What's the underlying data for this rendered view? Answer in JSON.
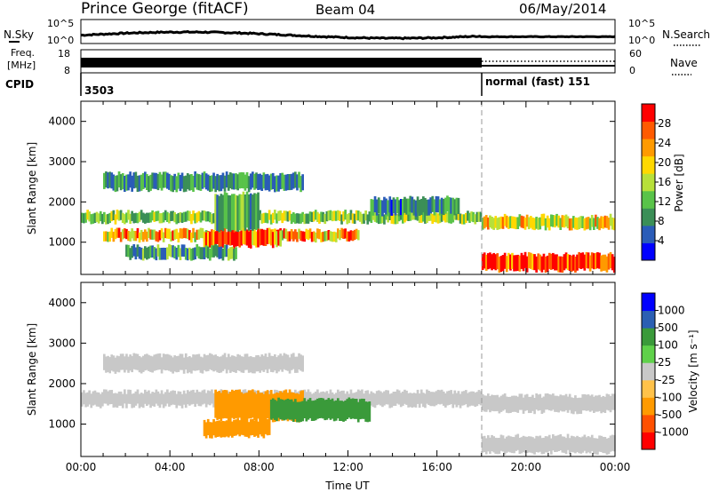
{
  "header": {
    "station": "Prince George (fitACF)",
    "beam": "Beam 04",
    "date": "06/May/2014"
  },
  "nsky_panel": {
    "left_label": "N.Sky",
    "left_ticks": [
      "10^5",
      "10^0"
    ],
    "right_ticks": [
      "10^5",
      "10^0"
    ],
    "right_label": "N.Search"
  },
  "freq_panel": {
    "left_label_line1": "Freq.",
    "left_label_line2": "[MHz]",
    "left_ticks": [
      "18",
      "8"
    ],
    "right_ticks": [
      "60",
      "0"
    ],
    "right_label": "Nave"
  },
  "cpid_panel": {
    "label": "CPID",
    "segments": [
      {
        "text": "3503",
        "start_hour": 0
      },
      {
        "text": "normal (fast) 151",
        "start_hour": 18
      }
    ]
  },
  "colors": {
    "power_scale": [
      "#0000ff",
      "#2a5cb8",
      "#3b8f57",
      "#59c349",
      "#b7e03a",
      "#ffd800",
      "#ff9a00",
      "#ff5a00",
      "#ff0000"
    ],
    "velocity_scale": [
      "#ff0000",
      "#ff5000",
      "#ff9a00",
      "#ffc24a",
      "#c8c8c8",
      "#5fd14a",
      "#3a9a3a",
      "#2b5fb3",
      "#0000ff"
    ]
  },
  "chart_data": [
    {
      "type": "heatmap",
      "name": "power",
      "ylabel": "Slant Range [km]",
      "y_ticks": [
        "1000",
        "2000",
        "3000",
        "4000"
      ],
      "ylim": [
        200,
        4500
      ],
      "colorbar_label": "Power [dB]",
      "colorbar_ticks": [
        "4",
        "8",
        "12",
        "16",
        "20",
        "24",
        "28"
      ],
      "colorbar_range": [
        0,
        32
      ],
      "bands": [
        {
          "t0": 0,
          "t1": 18,
          "r0": 1500,
          "r1": 1750,
          "level": 14
        },
        {
          "t0": 1,
          "t1": 12.5,
          "r0": 1050,
          "r1": 1300,
          "level": 22
        },
        {
          "t0": 5.5,
          "t1": 9,
          "r0": 900,
          "r1": 1300,
          "level": 26
        },
        {
          "t0": 2,
          "t1": 7,
          "r0": 600,
          "r1": 900,
          "level": 10
        },
        {
          "t0": 6,
          "t1": 8,
          "r0": 1300,
          "r1": 2200,
          "level": 12
        },
        {
          "t0": 18,
          "t1": 24,
          "r0": 1350,
          "r1": 1650,
          "level": 18
        },
        {
          "t0": 18,
          "t1": 24,
          "r0": 300,
          "r1": 700,
          "level": 30
        },
        {
          "t0": 1,
          "t1": 10,
          "r0": 2300,
          "r1": 2700,
          "level": 9
        },
        {
          "t0": 13,
          "t1": 17,
          "r0": 1700,
          "r1": 2100,
          "level": 8
        }
      ],
      "markers": [
        {
          "x": 18,
          "label": ""
        }
      ]
    },
    {
      "type": "heatmap",
      "name": "velocity",
      "ylabel": "Slant Range [km]",
      "y_ticks": [
        "1000",
        "2000",
        "3000",
        "4000"
      ],
      "ylim": [
        200,
        4500
      ],
      "xlabel": "Time UT",
      "x_ticks": [
        "00:00",
        "04:00",
        "08:00",
        "12:00",
        "16:00",
        "20:00",
        "00:00"
      ],
      "xlim": [
        0,
        24
      ],
      "colorbar_label": "Velocity [m s⁻¹]",
      "colorbar_ticks": [
        "-1000",
        "-500",
        "-100",
        "-25",
        "25",
        "100",
        "500",
        "1000"
      ],
      "bands": [
        {
          "t0": 0,
          "t1": 18,
          "r0": 1450,
          "r1": 1800,
          "level": 0
        },
        {
          "t0": 6,
          "t1": 10,
          "r0": 1100,
          "r1": 1800,
          "level": -300
        },
        {
          "t0": 8.5,
          "t1": 13,
          "r0": 1100,
          "r1": 1600,
          "level": 200
        },
        {
          "t0": 5.5,
          "t1": 8.5,
          "r0": 700,
          "r1": 1100,
          "level": -150
        },
        {
          "t0": 18,
          "t1": 24,
          "r0": 1300,
          "r1": 1700,
          "level": 0
        },
        {
          "t0": 18,
          "t1": 24,
          "r0": 300,
          "r1": 700,
          "level": 0
        },
        {
          "t0": 1,
          "t1": 10,
          "r0": 2300,
          "r1": 2700,
          "level": 0
        }
      ]
    }
  ]
}
